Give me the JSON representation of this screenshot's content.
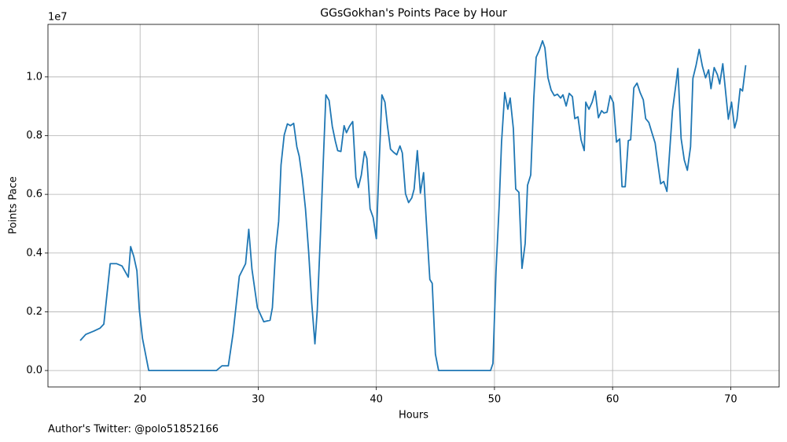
{
  "chart_data": {
    "type": "line",
    "title": "GGsGokhan's Points Pace by Hour",
    "xlabel": "Hours",
    "ylabel": "Points Pace",
    "y_offset_label": "1e7",
    "footnote": "Author's Twitter: @polo51852166",
    "color": "#1f77b4",
    "grid": true,
    "xlim": [
      12.2,
      74.1
    ],
    "xticks": [
      20,
      30,
      40,
      50,
      60,
      70
    ],
    "ylim": [
      -0.056,
      1.179
    ],
    "yticks": [
      {
        "value": 0,
        "label": "0.0"
      },
      0.2,
      0.4,
      0.6,
      0.8,
      {
        "value": 1,
        "label": "1.0"
      }
    ],
    "x": [
      14.93,
      15.4,
      16.07,
      16.6,
      16.93,
      17.47,
      18.0,
      18.47,
      19.0,
      19.2,
      19.47,
      19.73,
      19.93,
      20.2,
      20.73,
      26.47,
      26.93,
      27.47,
      27.87,
      28.4,
      28.93,
      29.2,
      29.47,
      29.93,
      30.47,
      30.67,
      31.0,
      31.2,
      31.47,
      31.73,
      31.93,
      32.2,
      32.47,
      32.73,
      33.0,
      33.27,
      33.47,
      33.73,
      34.0,
      34.27,
      34.53,
      34.8,
      35.0,
      35.27,
      35.53,
      35.73,
      36.0,
      36.27,
      36.53,
      36.73,
      37.0,
      37.27,
      37.47,
      37.73,
      38.0,
      38.27,
      38.47,
      38.73,
      39.0,
      39.2,
      39.47,
      39.73,
      40.0,
      40.2,
      40.47,
      40.73,
      40.93,
      41.2,
      41.47,
      41.73,
      42.0,
      42.2,
      42.47,
      42.73,
      43.0,
      43.2,
      43.47,
      43.73,
      44.0,
      44.2,
      44.53,
      44.73,
      45.0,
      45.27,
      49.67,
      49.87,
      50.13,
      50.4,
      50.6,
      50.87,
      51.13,
      51.33,
      51.6,
      51.8,
      52.07,
      52.33,
      52.6,
      52.8,
      53.07,
      53.33,
      53.53,
      53.8,
      54.07,
      54.27,
      54.53,
      54.8,
      55.07,
      55.33,
      55.6,
      55.8,
      56.07,
      56.33,
      56.6,
      56.8,
      57.07,
      57.33,
      57.6,
      57.73,
      58.0,
      58.27,
      58.53,
      58.8,
      59.07,
      59.27,
      59.53,
      59.8,
      60.07,
      60.33,
      60.6,
      60.8,
      61.07,
      61.33,
      61.53,
      61.8,
      62.07,
      62.33,
      62.6,
      62.8,
      63.07,
      63.33,
      63.6,
      63.8,
      64.07,
      64.33,
      64.6,
      64.8,
      65.07,
      65.33,
      65.53,
      65.8,
      66.07,
      66.33,
      66.6,
      66.8,
      67.07,
      67.33,
      67.6,
      67.87,
      68.13,
      68.33,
      68.6,
      68.87,
      69.07,
      69.33,
      69.53,
      69.8,
      70.07,
      70.33,
      70.53,
      70.8,
      71.0,
      71.27
    ],
    "values": [
      0.102,
      0.123,
      0.134,
      0.144,
      0.158,
      0.364,
      0.364,
      0.356,
      0.318,
      0.422,
      0.388,
      0.34,
      0.209,
      0.11,
      0,
      0,
      0.016,
      0.016,
      0.126,
      0.321,
      0.364,
      0.481,
      0.345,
      0.214,
      0.166,
      0.168,
      0.171,
      0.214,
      0.409,
      0.508,
      0.7,
      0.802,
      0.84,
      0.834,
      0.842,
      0.762,
      0.73,
      0.655,
      0.551,
      0.404,
      0.23,
      0.091,
      0.206,
      0.465,
      0.735,
      0.939,
      0.92,
      0.832,
      0.781,
      0.749,
      0.746,
      0.834,
      0.81,
      0.832,
      0.848,
      0.658,
      0.623,
      0.666,
      0.746,
      0.722,
      0.551,
      0.521,
      0.449,
      0.668,
      0.939,
      0.914,
      0.837,
      0.754,
      0.743,
      0.735,
      0.765,
      0.741,
      0.602,
      0.572,
      0.588,
      0.618,
      0.749,
      0.604,
      0.674,
      0.529,
      0.31,
      0.297,
      0.056,
      0,
      0,
      0.024,
      0.337,
      0.564,
      0.778,
      0.947,
      0.89,
      0.928,
      0.824,
      0.618,
      0.607,
      0.348,
      0.433,
      0.631,
      0.666,
      0.928,
      1.067,
      1.091,
      1.123,
      1.099,
      0.997,
      0.955,
      0.936,
      0.941,
      0.928,
      0.939,
      0.901,
      0.944,
      0.933,
      0.858,
      0.864,
      0.786,
      0.749,
      0.914,
      0.89,
      0.914,
      0.952,
      0.861,
      0.885,
      0.877,
      0.88,
      0.936,
      0.912,
      0.778,
      0.789,
      0.626,
      0.626,
      0.783,
      0.786,
      0.963,
      0.979,
      0.947,
      0.922,
      0.858,
      0.845,
      0.81,
      0.775,
      0.714,
      0.636,
      0.644,
      0.61,
      0.727,
      0.885,
      0.965,
      1.029,
      0.791,
      0.717,
      0.682,
      0.762,
      0.995,
      1.04,
      1.094,
      1.037,
      0.997,
      1.024,
      0.96,
      1.032,
      1.008,
      0.976,
      1.045,
      0.965,
      0.856,
      0.914,
      0.826,
      0.856,
      0.96,
      0.952,
      1.04
    ]
  }
}
